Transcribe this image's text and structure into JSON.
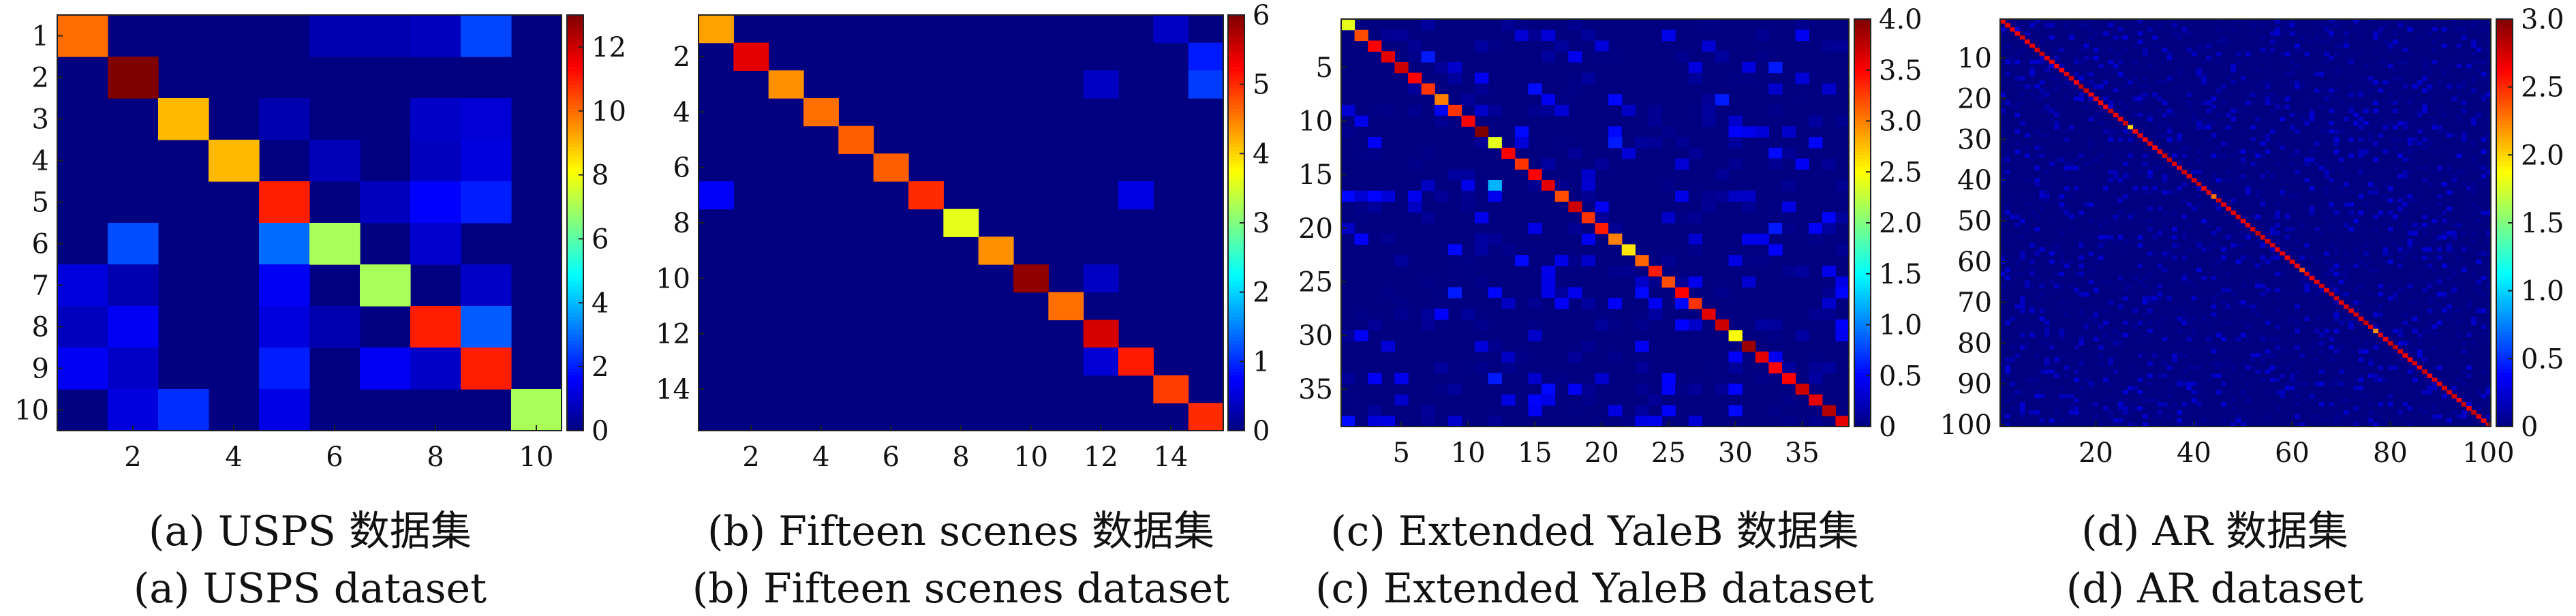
{
  "chart_data": [
    {
      "type": "heatmap",
      "n": 10,
      "caption_zh": "(a) USPS 数据集",
      "caption_en": "(a) USPS dataset",
      "x_ticks": [
        2,
        4,
        6,
        8,
        10
      ],
      "y_ticks": [
        1,
        2,
        3,
        4,
        5,
        6,
        7,
        8,
        9,
        10
      ],
      "colorbar": {
        "min": 0,
        "max": 13,
        "ticks": [
          0,
          2,
          4,
          6,
          8,
          10,
          12
        ],
        "tick_labels": [
          "0",
          "2",
          "4",
          "6",
          "8",
          "10",
          "12"
        ]
      },
      "diagonal": [
        10,
        13,
        9,
        9,
        11,
        7,
        7,
        11,
        11,
        7
      ],
      "off_diagonal": [
        {
          "r": 1,
          "c": 9,
          "v": 2.5
        },
        {
          "r": 1,
          "c": 6,
          "v": 0.6
        },
        {
          "r": 1,
          "c": 7,
          "v": 0.6
        },
        {
          "r": 1,
          "c": 8,
          "v": 0.8
        },
        {
          "r": 3,
          "c": 8,
          "v": 0.9
        },
        {
          "r": 3,
          "c": 9,
          "v": 1.1
        },
        {
          "r": 3,
          "c": 5,
          "v": 0.6
        },
        {
          "r": 4,
          "c": 6,
          "v": 0.7
        },
        {
          "r": 4,
          "c": 8,
          "v": 0.8
        },
        {
          "r": 4,
          "c": 9,
          "v": 1.2
        },
        {
          "r": 5,
          "c": 7,
          "v": 0.8
        },
        {
          "r": 5,
          "c": 8,
          "v": 1.6
        },
        {
          "r": 5,
          "c": 9,
          "v": 2.0
        },
        {
          "r": 6,
          "c": 2,
          "v": 2.6
        },
        {
          "r": 6,
          "c": 5,
          "v": 3.0
        },
        {
          "r": 6,
          "c": 8,
          "v": 1.0
        },
        {
          "r": 7,
          "c": 1,
          "v": 1.2
        },
        {
          "r": 7,
          "c": 2,
          "v": 0.6
        },
        {
          "r": 7,
          "c": 5,
          "v": 1.5
        },
        {
          "r": 7,
          "c": 9,
          "v": 0.9
        },
        {
          "r": 8,
          "c": 1,
          "v": 0.8
        },
        {
          "r": 8,
          "c": 2,
          "v": 1.5
        },
        {
          "r": 8,
          "c": 5,
          "v": 1.2
        },
        {
          "r": 8,
          "c": 6,
          "v": 0.6
        },
        {
          "r": 8,
          "c": 9,
          "v": 2.8
        },
        {
          "r": 9,
          "c": 1,
          "v": 1.5
        },
        {
          "r": 9,
          "c": 2,
          "v": 0.9
        },
        {
          "r": 9,
          "c": 5,
          "v": 2.0
        },
        {
          "r": 9,
          "c": 7,
          "v": 1.5
        },
        {
          "r": 9,
          "c": 8,
          "v": 0.9
        },
        {
          "r": 10,
          "c": 2,
          "v": 1.2
        },
        {
          "r": 10,
          "c": 3,
          "v": 2.2
        },
        {
          "r": 10,
          "c": 5,
          "v": 1.3
        }
      ]
    },
    {
      "type": "heatmap",
      "n": 15,
      "caption_zh": "(b) Fifteen scenes 数据集",
      "caption_en": "(b) Fifteen scenes dataset",
      "x_ticks": [
        2,
        4,
        6,
        8,
        10,
        12,
        14
      ],
      "y_ticks": [
        2,
        4,
        6,
        8,
        10,
        12,
        14
      ],
      "colorbar": {
        "min": 0,
        "max": 6,
        "ticks": [
          0,
          1,
          2,
          3,
          4,
          5,
          6
        ],
        "tick_labels": [
          "0",
          "1",
          "2",
          "3",
          "4",
          "5",
          "6"
        ]
      },
      "diagonal": [
        4.3,
        5.4,
        4.4,
        4.6,
        4.7,
        4.7,
        5.0,
        3.6,
        4.4,
        5.9,
        4.6,
        5.5,
        5.1,
        4.9,
        5.0
      ],
      "off_diagonal": [
        {
          "r": 2,
          "c": 15,
          "v": 0.9
        },
        {
          "r": 7,
          "c": 1,
          "v": 0.7
        },
        {
          "r": 7,
          "c": 13,
          "v": 0.6
        },
        {
          "r": 3,
          "c": 15,
          "v": 1.1
        },
        {
          "r": 10,
          "c": 12,
          "v": 0.4
        },
        {
          "r": 13,
          "c": 12,
          "v": 0.5
        },
        {
          "r": 1,
          "c": 14,
          "v": 0.4
        },
        {
          "r": 3,
          "c": 12,
          "v": 0.4
        }
      ]
    },
    {
      "type": "heatmap",
      "n": 38,
      "caption_zh": "(c) Extended YaleB 数据集",
      "caption_en": "(c) Extended YaleB dataset",
      "x_ticks": [
        5,
        10,
        15,
        20,
        25,
        30,
        35
      ],
      "y_ticks": [
        5,
        10,
        15,
        20,
        25,
        30,
        35
      ],
      "colorbar": {
        "min": 0,
        "max": 4,
        "ticks": [
          0,
          0.5,
          1,
          1.5,
          2,
          2.5,
          3,
          3.5,
          4
        ],
        "tick_labels": [
          "0",
          "0.5",
          "1.0",
          "1.5",
          "2.0",
          "2.5",
          "3.0",
          "3.5",
          "4.0"
        ]
      },
      "diagonal": [
        2.4,
        3.2,
        3.5,
        3.6,
        3.7,
        3.5,
        3.3,
        3.0,
        3.3,
        3.5,
        4.0,
        2.4,
        3.5,
        3.3,
        3.5,
        3.6,
        3.2,
        3.7,
        3.3,
        3.4,
        3.0,
        2.6,
        3.1,
        3.4,
        3.2,
        3.5,
        3.3,
        3.6,
        3.7,
        2.5,
        3.9,
        3.6,
        3.5,
        3.5,
        3.7,
        3.6,
        3.8,
        3.6
      ],
      "off_diagonal": [
        {
          "r": 16,
          "c": 12,
          "v": 1.2
        },
        {
          "r": 4,
          "c": 7,
          "v": 0.6
        },
        {
          "r": 12,
          "c": 21,
          "v": 0.6
        },
        {
          "r": 8,
          "c": 29,
          "v": 0.6
        },
        {
          "r": 20,
          "c": 33,
          "v": 0.6
        },
        {
          "r": 26,
          "c": 9,
          "v": 0.6
        },
        {
          "r": 5,
          "c": 33,
          "v": 0.6
        },
        {
          "r": 34,
          "c": 12,
          "v": 0.6
        }
      ],
      "noise_level": 0.32
    },
    {
      "type": "heatmap",
      "n": 100,
      "caption_zh": "(d) AR 数据集",
      "caption_en": "(d) AR dataset",
      "x_ticks": [
        20,
        40,
        60,
        80,
        100
      ],
      "y_ticks": [
        10,
        20,
        30,
        40,
        50,
        60,
        70,
        80,
        90,
        100
      ],
      "colorbar": {
        "min": 0,
        "max": 3,
        "ticks": [
          0,
          0.5,
          1,
          1.5,
          2,
          2.5,
          3
        ],
        "tick_labels": [
          "0",
          "0.5",
          "1.0",
          "1.5",
          "2.0",
          "2.5",
          "3.0"
        ]
      },
      "diagonal_value": 2.8,
      "diagonal_exceptions": [
        {
          "i": 27,
          "v": 2.0
        },
        {
          "i": 44,
          "v": 2.3
        },
        {
          "i": 62,
          "v": 2.4
        },
        {
          "i": 77,
          "v": 2.2
        }
      ],
      "noise_level": 0.15
    }
  ]
}
